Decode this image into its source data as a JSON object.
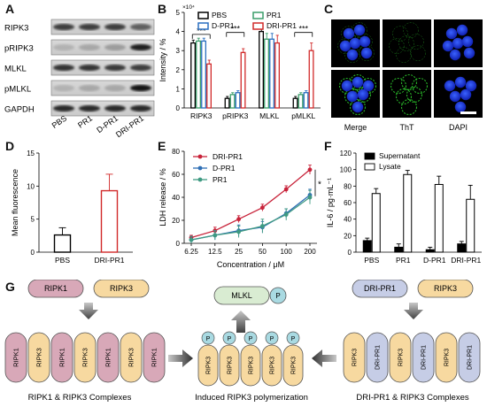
{
  "panels": {
    "A": "A",
    "B": "B",
    "C": "C",
    "D": "D",
    "E": "E",
    "F": "F",
    "G": "G"
  },
  "panel_a": {
    "rows": [
      "RIPK3",
      "pRIPK3",
      "MLKL",
      "pMLKL",
      "GAPDH"
    ],
    "lanes": [
      "PBS",
      "PR1",
      "D-PR1",
      "DRI-PR1"
    ]
  },
  "panel_c": {
    "labels": [
      "Merge",
      "ThT",
      "DAPI"
    ]
  },
  "panel_g": {
    "top_left": [
      "RIPK1",
      "RIPK3"
    ],
    "top_right": [
      "DRI-PR1",
      "RIPK3"
    ],
    "mlkl": "MLKL",
    "p": "P",
    "left_complex": [
      "RIPK1",
      "RIPK3",
      "RIPK1",
      "RIPK3",
      "RIPK1",
      "RIPK3",
      "RIPK1"
    ],
    "center_chain": [
      "RIPK3",
      "RIPK3",
      "RIPK3",
      "RIPK3",
      "RIPK3"
    ],
    "right_complex": [
      "RIPK3",
      "DRI-PR1",
      "RIPK3",
      "DRI-PR1",
      "RIPK3",
      "DRI-PR1"
    ],
    "caption_left": "RIPK1 & RIPK3 Complexes",
    "caption_center": "Induced RIPK3 polymerization",
    "caption_right": "DRI-PR1 & RIPK3 Complexes",
    "colors": {
      "ripk1": "#d8a8b8",
      "ripk3": "#f7d9a0",
      "dri": "#c6cde6",
      "mlkl": "#d9ecd2",
      "p": "#a9dae2"
    }
  },
  "chart_data": [
    {
      "panel": "B",
      "type": "bar",
      "ylabel": "Intensity / %",
      "multiplier": "×10⁴",
      "ylim": [
        0,
        5
      ],
      "yticks": [
        "0",
        "1",
        "2",
        "3",
        "4",
        "5"
      ],
      "categories": [
        "RIPK3",
        "pRIPK3",
        "MLKL",
        "pMLKL"
      ],
      "series": [
        {
          "name": "PBS",
          "color": "#000000",
          "values": [
            3.4,
            0.5,
            4.0,
            0.5
          ]
        },
        {
          "name": "PR1",
          "color": "#3a9d6a",
          "values": [
            3.5,
            0.7,
            3.6,
            0.7
          ]
        },
        {
          "name": "D-PR1",
          "color": "#2a6fc0",
          "values": [
            3.5,
            0.8,
            3.6,
            0.8
          ]
        },
        {
          "name": "DRI-PR1",
          "color": "#d12a2a",
          "values": [
            2.3,
            2.9,
            3.4,
            3.0
          ]
        }
      ],
      "errors": [
        [
          0.15,
          0.1,
          0.2,
          0.1
        ],
        [
          0.15,
          0.1,
          0.3,
          0.1
        ],
        [
          0.15,
          0.1,
          0.3,
          0.1
        ],
        [
          0.2,
          0.2,
          0.4,
          0.4
        ]
      ],
      "annotations": [
        "***",
        "***",
        "***"
      ]
    },
    {
      "panel": "D",
      "type": "bar",
      "ylabel": "Mean fluorescence",
      "ylim": [
        0,
        15
      ],
      "yticks": [
        "0",
        "5",
        "10",
        "15"
      ],
      "categories": [
        "PBS",
        "DRI-PR1"
      ],
      "values": [
        2.6,
        9.3
      ],
      "errors": [
        1.1,
        2.5
      ],
      "colors": [
        "#000000",
        "#d12a2a"
      ]
    },
    {
      "panel": "E",
      "type": "line",
      "xlabel": "Concentration / μM",
      "ylabel": "LDH release / %",
      "ylim": [
        0,
        80
      ],
      "yticks": [
        "0",
        "20",
        "40",
        "60",
        "80"
      ],
      "x": [
        "6.25",
        "12.5",
        "25",
        "50",
        "100",
        "200"
      ],
      "series": [
        {
          "name": "DRI-PR1",
          "color": "#c8233a",
          "values": [
            5,
            11,
            21,
            31,
            47,
            64
          ],
          "errors": [
            2,
            3,
            3,
            3,
            3,
            4
          ]
        },
        {
          "name": "D-PR1",
          "color": "#2f6fb5",
          "values": [
            3,
            7,
            11,
            14,
            26,
            42
          ],
          "errors": [
            3,
            4,
            5,
            5,
            4,
            5
          ]
        },
        {
          "name": "PR1",
          "color": "#3f9a82",
          "values": [
            3,
            7,
            10,
            15,
            25,
            40
          ],
          "errors": [
            3,
            4,
            5,
            6,
            5,
            6
          ]
        }
      ],
      "annotations": [
        "*"
      ]
    },
    {
      "panel": "F",
      "type": "bar",
      "ylabel": "IL-6 / pg·mL⁻¹",
      "ylim": [
        0,
        120
      ],
      "yticks": [
        "0",
        "20",
        "40",
        "60",
        "80",
        "100",
        "120"
      ],
      "categories": [
        "PBS",
        "PR1",
        "D-PR1",
        "DRI-PR1"
      ],
      "series": [
        {
          "name": "Supernatant",
          "color": "#000000",
          "values": [
            14,
            6,
            3,
            10
          ],
          "errors": [
            3,
            4,
            3,
            3
          ]
        },
        {
          "name": "Lysate",
          "color": "#ffffff",
          "values": [
            71,
            94,
            82,
            64
          ],
          "errors": [
            6,
            5,
            10,
            17
          ]
        }
      ]
    }
  ]
}
